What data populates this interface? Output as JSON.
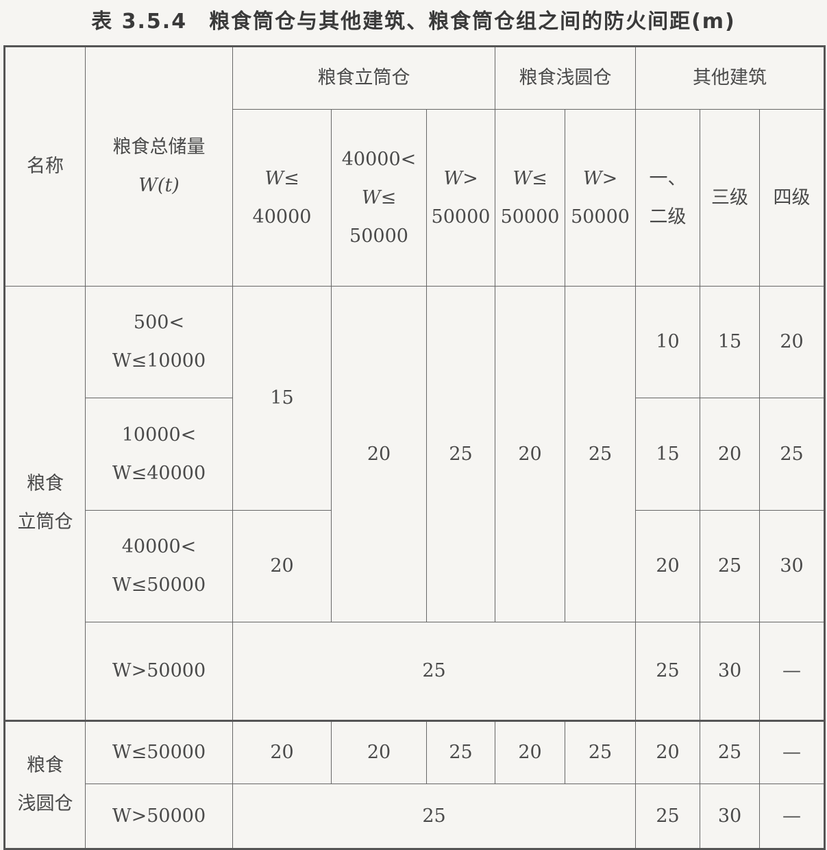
{
  "title": "表 3.5.4　粮食筒仓与其他建筑、粮食筒仓组之间的防火间距(m)",
  "header": {
    "name": "名称",
    "storage": [
      "粮食总储量",
      "W(t)"
    ],
    "groups": [
      "粮食立筒仓",
      "粮食浅圆仓",
      "其他建筑"
    ],
    "sub": [
      [
        "W≤",
        "40000"
      ],
      [
        "40000<",
        "W≤",
        "50000"
      ],
      [
        "W>",
        "50000"
      ],
      [
        "W≤",
        "50000"
      ],
      [
        "W>",
        "50000"
      ],
      [
        "一、",
        "二级"
      ],
      [
        "三级"
      ],
      [
        "四级"
      ]
    ]
  },
  "sections": [
    {
      "name": [
        "粮食",
        "立筒仓"
      ],
      "rows": [
        {
          "storage": [
            "500<",
            "W≤10000"
          ],
          "cells": [
            "15",
            "20",
            "25",
            "20",
            "25",
            "10",
            "15",
            "20"
          ]
        },
        {
          "storage": [
            "10000<",
            "W≤40000"
          ],
          "cells": [
            "15",
            "20",
            "25"
          ]
        },
        {
          "storage": [
            "40000<",
            "W≤50000"
          ],
          "cells": [
            "20",
            "20",
            "25",
            "30"
          ]
        },
        {
          "storage": [
            "W>50000"
          ],
          "cells": [
            "25",
            "25",
            "30",
            "—"
          ]
        }
      ]
    },
    {
      "name": [
        "粮食",
        "浅圆仓"
      ],
      "rows": [
        {
          "storage": [
            "W≤50000"
          ],
          "cells": [
            "20",
            "20",
            "25",
            "20",
            "25",
            "20",
            "25",
            "—"
          ]
        },
        {
          "storage": [
            "W>50000"
          ],
          "cells": [
            "25",
            "25",
            "30",
            "—"
          ]
        }
      ]
    }
  ]
}
